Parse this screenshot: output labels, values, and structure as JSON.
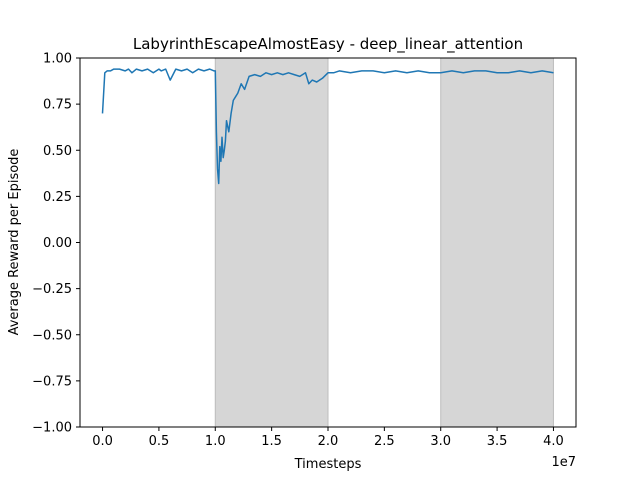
{
  "chart_data": {
    "type": "line",
    "title": "LabyrinthEscapeAlmostEasy - deep_linear_attention",
    "xlabel": "Timesteps",
    "ylabel": "Average Reward per Episode",
    "x_offset_label": "1e7",
    "xlim": [
      -2000000,
      42000000
    ],
    "ylim": [
      -1.0,
      1.0
    ],
    "x_ticks": [
      0,
      5000000,
      10000000,
      15000000,
      20000000,
      25000000,
      30000000,
      35000000,
      40000000
    ],
    "x_tick_labels": [
      "0.0",
      "0.5",
      "1.0",
      "1.5",
      "2.0",
      "2.5",
      "3.0",
      "3.5",
      "4.0"
    ],
    "y_ticks": [
      -1.0,
      -0.75,
      -0.5,
      -0.25,
      0.0,
      0.25,
      0.5,
      0.75,
      1.0
    ],
    "y_tick_labels": [
      "−1.00",
      "−0.75",
      "−0.50",
      "−0.25",
      "0.00",
      "0.25",
      "0.50",
      "0.75",
      "1.00"
    ],
    "shaded_regions": [
      [
        10000000,
        20000000
      ],
      [
        30000000,
        40000000
      ]
    ],
    "grid": false,
    "line_color": "#1f77b4",
    "shade_color": "#d6d6d6",
    "series": [
      {
        "x": [
          0,
          200000,
          400000,
          700000,
          1000000,
          1500000,
          2000000,
          2300000,
          2600000,
          3000000,
          3500000,
          4000000,
          4500000,
          5000000,
          5200000,
          5600000,
          6000000,
          6500000,
          7000000,
          7500000,
          8000000,
          8500000,
          9000000,
          9500000,
          9900000,
          10000000,
          10100000,
          10200000,
          10300000,
          10400000,
          10500000,
          10600000,
          10700000,
          10800000,
          10900000,
          11000000,
          11200000,
          11400000,
          11600000,
          11800000,
          12000000,
          12300000,
          12600000,
          13000000,
          13500000,
          14000000,
          14500000,
          15000000,
          15500000,
          16000000,
          16500000,
          17000000,
          17500000,
          18000000,
          18300000,
          18600000,
          19000000,
          19500000,
          20000000,
          20500000,
          21000000,
          22000000,
          23000000,
          24000000,
          25000000,
          26000000,
          27000000,
          28000000,
          29000000,
          30000000,
          31000000,
          32000000,
          33000000,
          34000000,
          35000000,
          36000000,
          37000000,
          38000000,
          39000000,
          40000000
        ],
        "y": [
          0.7,
          0.92,
          0.93,
          0.93,
          0.94,
          0.94,
          0.93,
          0.94,
          0.92,
          0.94,
          0.93,
          0.94,
          0.92,
          0.94,
          0.93,
          0.94,
          0.88,
          0.94,
          0.93,
          0.94,
          0.92,
          0.94,
          0.93,
          0.94,
          0.93,
          0.93,
          0.6,
          0.4,
          0.32,
          0.52,
          0.44,
          0.57,
          0.46,
          0.5,
          0.55,
          0.66,
          0.6,
          0.7,
          0.77,
          0.79,
          0.81,
          0.86,
          0.83,
          0.9,
          0.91,
          0.9,
          0.92,
          0.91,
          0.92,
          0.91,
          0.92,
          0.91,
          0.9,
          0.92,
          0.86,
          0.88,
          0.87,
          0.89,
          0.92,
          0.92,
          0.93,
          0.92,
          0.93,
          0.93,
          0.92,
          0.93,
          0.92,
          0.93,
          0.92,
          0.92,
          0.93,
          0.92,
          0.93,
          0.93,
          0.92,
          0.92,
          0.93,
          0.92,
          0.93,
          0.92
        ]
      }
    ]
  }
}
